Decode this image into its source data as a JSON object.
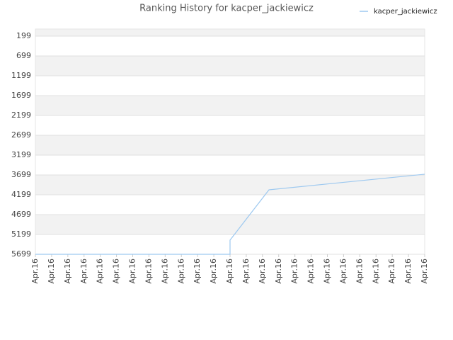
{
  "chart_data": {
    "type": "line",
    "title": "Ranking History for kacper_jackiewicz",
    "x": [
      0,
      12,
      12,
      14.4,
      24
    ],
    "series": [
      {
        "name": "kacper_jackiewicz",
        "color": "#9ec9f0",
        "values": [
          5699,
          5699,
          5342,
          4074,
          3680
        ]
      }
    ],
    "xlim": [
      0,
      24
    ],
    "xticks": [
      {
        "value": 0,
        "label": "Apr.16"
      },
      {
        "value": 1,
        "label": "Apr.16"
      },
      {
        "value": 2,
        "label": "Apr.16"
      },
      {
        "value": 3,
        "label": "Apr.16"
      },
      {
        "value": 4,
        "label": "Apr.16"
      },
      {
        "value": 5,
        "label": "Apr.16"
      },
      {
        "value": 6,
        "label": "Apr.16"
      },
      {
        "value": 7,
        "label": "Apr.16"
      },
      {
        "value": 8,
        "label": "Apr.16"
      },
      {
        "value": 9,
        "label": "Apr.16"
      },
      {
        "value": 10,
        "label": "Apr.16"
      },
      {
        "value": 11,
        "label": "Apr.16"
      },
      {
        "value": 12,
        "label": "Apr.16"
      },
      {
        "value": 13,
        "label": "Apr.16"
      },
      {
        "value": 14,
        "label": "Apr.16"
      },
      {
        "value": 15,
        "label": "Apr.16"
      },
      {
        "value": 16,
        "label": "Apr.16"
      },
      {
        "value": 17,
        "label": "Apr.16"
      },
      {
        "value": 18,
        "label": "Apr.16"
      },
      {
        "value": 19,
        "label": "Apr.16"
      },
      {
        "value": 20,
        "label": "Apr.16"
      },
      {
        "value": 21,
        "label": "Apr.16"
      },
      {
        "value": 22,
        "label": "Apr.16"
      },
      {
        "value": 23,
        "label": "Apr.16"
      },
      {
        "value": 24,
        "label": "Apr.16"
      }
    ],
    "ylim": [
      5699,
      20
    ],
    "yticks": [
      199,
      699,
      1199,
      1699,
      2199,
      2699,
      3199,
      3699,
      4199,
      4699,
      5199,
      5699
    ],
    "grid": true,
    "legend": "top-right"
  }
}
